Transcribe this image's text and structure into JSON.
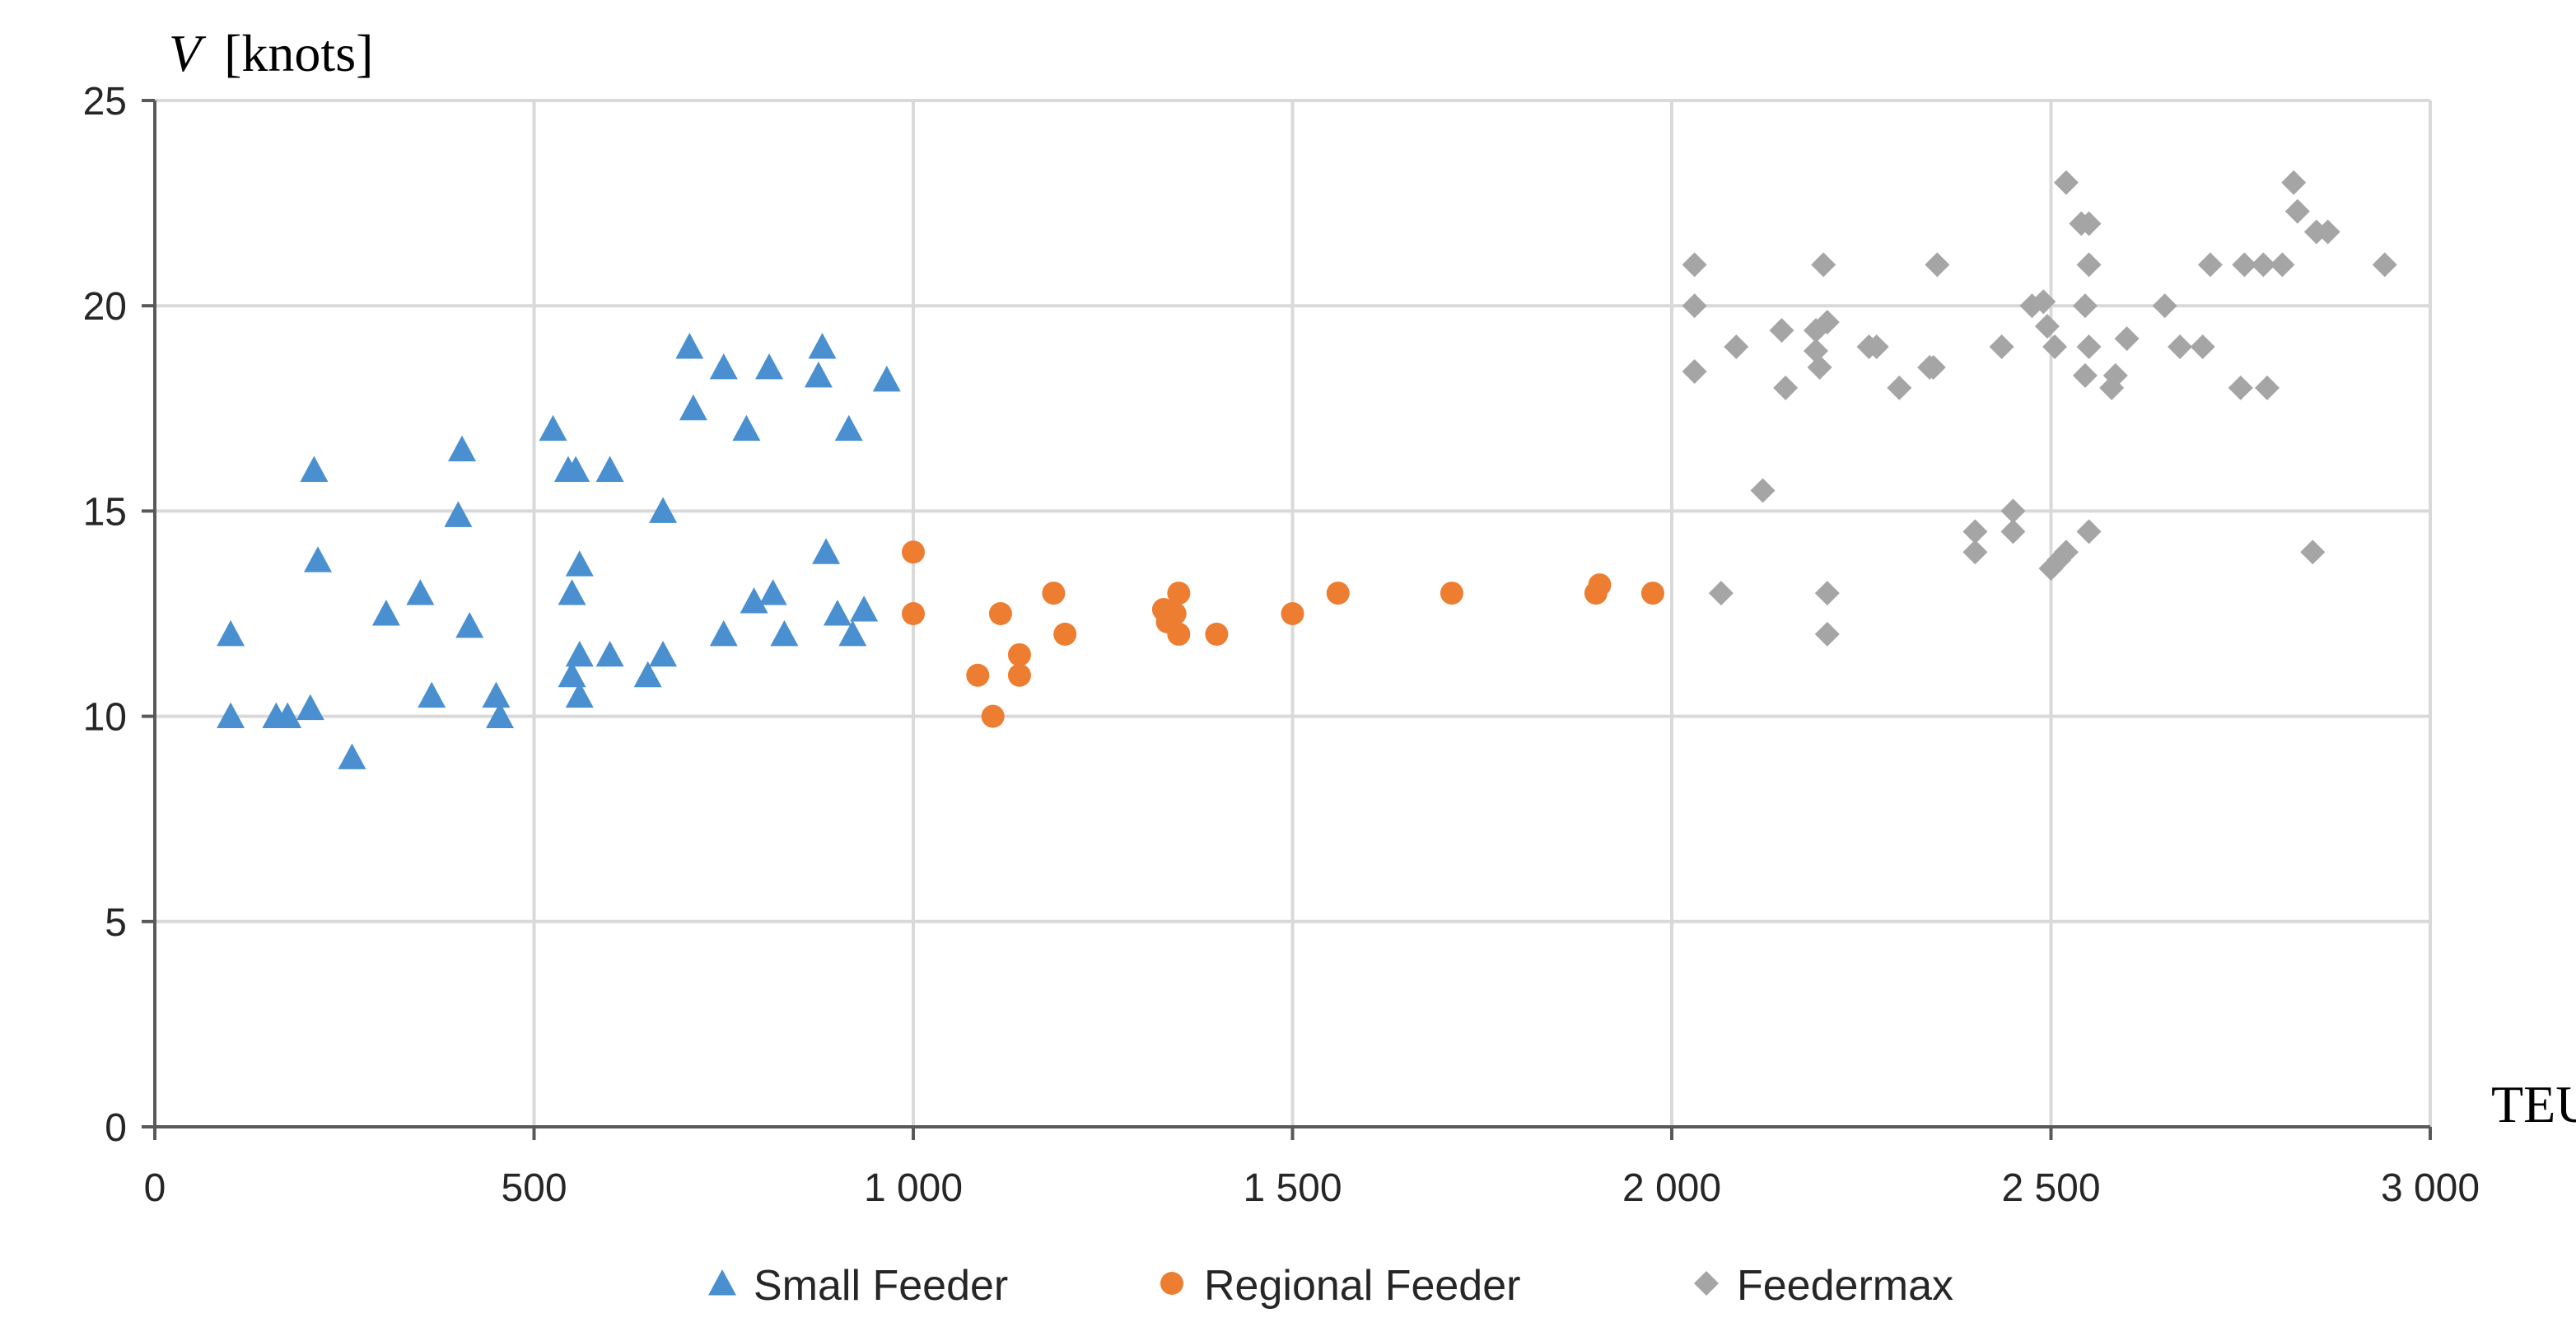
{
  "chart_data": {
    "type": "scatter",
    "title": "",
    "ylabel_var": "V",
    "ylabel_unit": "[knots]",
    "xlabel": "TEU",
    "xlim": [
      0,
      3000
    ],
    "ylim": [
      0,
      25
    ],
    "xticks": [
      0,
      500,
      1000,
      1500,
      2000,
      2500,
      3000
    ],
    "xtick_labels": [
      "0",
      "500",
      "1 000",
      "1 500",
      "2 000",
      "2 500",
      "3 000"
    ],
    "yticks": [
      0,
      5,
      10,
      15,
      20,
      25
    ],
    "ytick_labels": [
      "0",
      "5",
      "10",
      "15",
      "20",
      "25"
    ],
    "grid": true,
    "legend_position": "bottom",
    "series": [
      {
        "name": "Small Feeder",
        "marker": "triangle",
        "color": "#4a90d0",
        "points": [
          [
            100,
            12
          ],
          [
            100,
            10
          ],
          [
            160,
            10
          ],
          [
            175,
            10
          ],
          [
            205,
            10.2
          ],
          [
            210,
            16
          ],
          [
            215,
            13.8
          ],
          [
            260,
            9
          ],
          [
            305,
            12.5
          ],
          [
            350,
            13
          ],
          [
            365,
            10.5
          ],
          [
            400,
            14.9
          ],
          [
            405,
            16.5
          ],
          [
            415,
            12.2
          ],
          [
            450,
            10.5
          ],
          [
            455,
            10
          ],
          [
            525,
            17
          ],
          [
            545,
            16
          ],
          [
            550,
            13
          ],
          [
            550,
            11
          ],
          [
            555,
            16
          ],
          [
            560,
            13.7
          ],
          [
            560,
            11.5
          ],
          [
            560,
            10.5
          ],
          [
            600,
            16
          ],
          [
            600,
            11.5
          ],
          [
            650,
            11
          ],
          [
            670,
            11.5
          ],
          [
            670,
            15
          ],
          [
            705,
            19
          ],
          [
            710,
            17.5
          ],
          [
            750,
            18.5
          ],
          [
            750,
            12
          ],
          [
            780,
            17
          ],
          [
            790,
            12.8
          ],
          [
            810,
            18.5
          ],
          [
            815,
            13
          ],
          [
            830,
            12
          ],
          [
            875,
            18.3
          ],
          [
            880,
            19
          ],
          [
            885,
            14
          ],
          [
            900,
            12.5
          ],
          [
            915,
            17
          ],
          [
            920,
            12
          ],
          [
            935,
            12.6
          ],
          [
            965,
            18.2
          ]
        ]
      },
      {
        "name": "Regional Feeder",
        "marker": "circle",
        "color": "#ed7d31",
        "points": [
          [
            1000,
            14
          ],
          [
            1000,
            12.5
          ],
          [
            1085,
            11
          ],
          [
            1105,
            10
          ],
          [
            1115,
            12.5
          ],
          [
            1140,
            11.5
          ],
          [
            1140,
            11
          ],
          [
            1185,
            13
          ],
          [
            1200,
            12
          ],
          [
            1330,
            12.6
          ],
          [
            1335,
            12.3
          ],
          [
            1345,
            12.5
          ],
          [
            1350,
            13
          ],
          [
            1350,
            12
          ],
          [
            1400,
            12
          ],
          [
            1500,
            12.5
          ],
          [
            1560,
            13
          ],
          [
            1710,
            13
          ],
          [
            1900,
            13
          ],
          [
            1905,
            13.2
          ],
          [
            1975,
            13
          ]
        ]
      },
      {
        "name": "Feedermax",
        "marker": "diamond",
        "color": "#a5a5a5",
        "points": [
          [
            2030,
            21
          ],
          [
            2030,
            20
          ],
          [
            2030,
            18.4
          ],
          [
            2065,
            13
          ],
          [
            2085,
            19
          ],
          [
            2120,
            15.5
          ],
          [
            2145,
            19.4
          ],
          [
            2150,
            18
          ],
          [
            2190,
            19.4
          ],
          [
            2190,
            18.9
          ],
          [
            2195,
            18.5
          ],
          [
            2200,
            21
          ],
          [
            2205,
            19.6
          ],
          [
            2205,
            13
          ],
          [
            2205,
            12
          ],
          [
            2260,
            19
          ],
          [
            2270,
            19
          ],
          [
            2300,
            18
          ],
          [
            2340,
            18.5
          ],
          [
            2345,
            18.5
          ],
          [
            2350,
            21
          ],
          [
            2400,
            14.5
          ],
          [
            2400,
            14
          ],
          [
            2435,
            19
          ],
          [
            2450,
            15
          ],
          [
            2450,
            14.5
          ],
          [
            2475,
            20
          ],
          [
            2490,
            20.1
          ],
          [
            2495,
            19.5
          ],
          [
            2500,
            13.6
          ],
          [
            2505,
            19
          ],
          [
            2510,
            13.8
          ],
          [
            2520,
            14
          ],
          [
            2520,
            23
          ],
          [
            2540,
            22
          ],
          [
            2545,
            20
          ],
          [
            2545,
            18.3
          ],
          [
            2550,
            22
          ],
          [
            2550,
            21
          ],
          [
            2550,
            19
          ],
          [
            2550,
            14.5
          ],
          [
            2580,
            18
          ],
          [
            2585,
            18.3
          ],
          [
            2600,
            19.2
          ],
          [
            2650,
            20
          ],
          [
            2670,
            19
          ],
          [
            2700,
            19
          ],
          [
            2710,
            21
          ],
          [
            2750,
            18
          ],
          [
            2755,
            21
          ],
          [
            2780,
            21
          ],
          [
            2785,
            18
          ],
          [
            2805,
            21
          ],
          [
            2820,
            23
          ],
          [
            2825,
            22.3
          ],
          [
            2845,
            14
          ],
          [
            2850,
            21.8
          ],
          [
            2865,
            21.8
          ],
          [
            2940,
            21
          ]
        ]
      }
    ]
  }
}
